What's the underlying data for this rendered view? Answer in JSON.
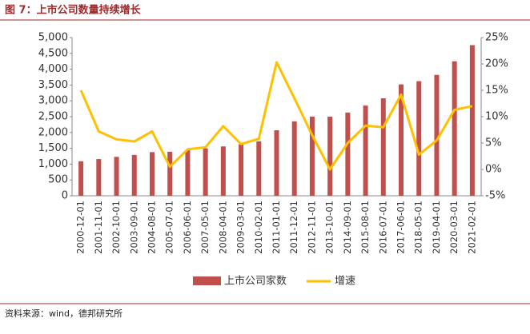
{
  "chart_data": {
    "type": "bar_line",
    "title": "图 7：上市公司数量持续增长",
    "source": "资料来源：wind，德邦研究所",
    "categories": [
      "2000-12-01",
      "2001-11-01",
      "2002-10-01",
      "2003-09-01",
      "2004-08-01",
      "2005-07-01",
      "2006-06-01",
      "2007-05-01",
      "2008-04-01",
      "2009-03-01",
      "2010-02-01",
      "2011-01-01",
      "2011-12-01",
      "2012-11-01",
      "2013-10-01",
      "2014-09-01",
      "2015-08-01",
      "2016-07-01",
      "2017-06-01",
      "2018-05-01",
      "2019-04-01",
      "2020-03-01",
      "2021-02-01"
    ],
    "series": [
      {
        "name": "上市公司家数",
        "color": "#c0504d",
        "type": "bar",
        "values": [
          1090,
          1160,
          1230,
          1290,
          1380,
          1390,
          1440,
          1500,
          1560,
          1630,
          1720,
          2070,
          2350,
          2500,
          2500,
          2630,
          2850,
          3080,
          3520,
          3620,
          3820,
          4250,
          4760
        ]
      },
      {
        "name": "增速",
        "color": "#ffc000",
        "type": "line",
        "axis": "y2",
        "values": [
          15,
          7.2,
          5.7,
          5.3,
          7.2,
          0.5,
          3.8,
          4.2,
          8.2,
          4.8,
          5.8,
          20.3,
          13.5,
          6.5,
          0,
          5,
          8.3,
          8,
          14.2,
          2.8,
          5.5,
          11.3,
          12
        ]
      }
    ],
    "ylim": [
      0,
      5000
    ],
    "yticks": [
      0,
      {
        "value": 500,
        "label": "500"
      },
      {
        "value": 1000,
        "label": "1,000"
      },
      {
        "value": 1500,
        "label": "1,500"
      },
      {
        "value": 2000,
        "label": "2,000"
      },
      {
        "value": 2500,
        "label": "2,500"
      },
      {
        "value": 3000,
        "label": "3,000"
      },
      {
        "value": 3500,
        "label": "3,500"
      },
      {
        "value": 4000,
        "label": "4,000"
      },
      {
        "value": 4500,
        "label": "4,500"
      },
      {
        "value": 5000,
        "label": "5,000"
      }
    ],
    "y2lim": [
      -5,
      25
    ],
    "y2ticks": [
      {
        "value": -5,
        "label": "-5%"
      },
      {
        "value": 0,
        "label": "0%"
      },
      {
        "value": 5,
        "label": "5%"
      },
      {
        "value": 10,
        "label": "10%"
      },
      {
        "value": 15,
        "label": "15%"
      },
      {
        "value": 20,
        "label": "20%"
      },
      {
        "value": 25,
        "label": "25%"
      }
    ]
  }
}
